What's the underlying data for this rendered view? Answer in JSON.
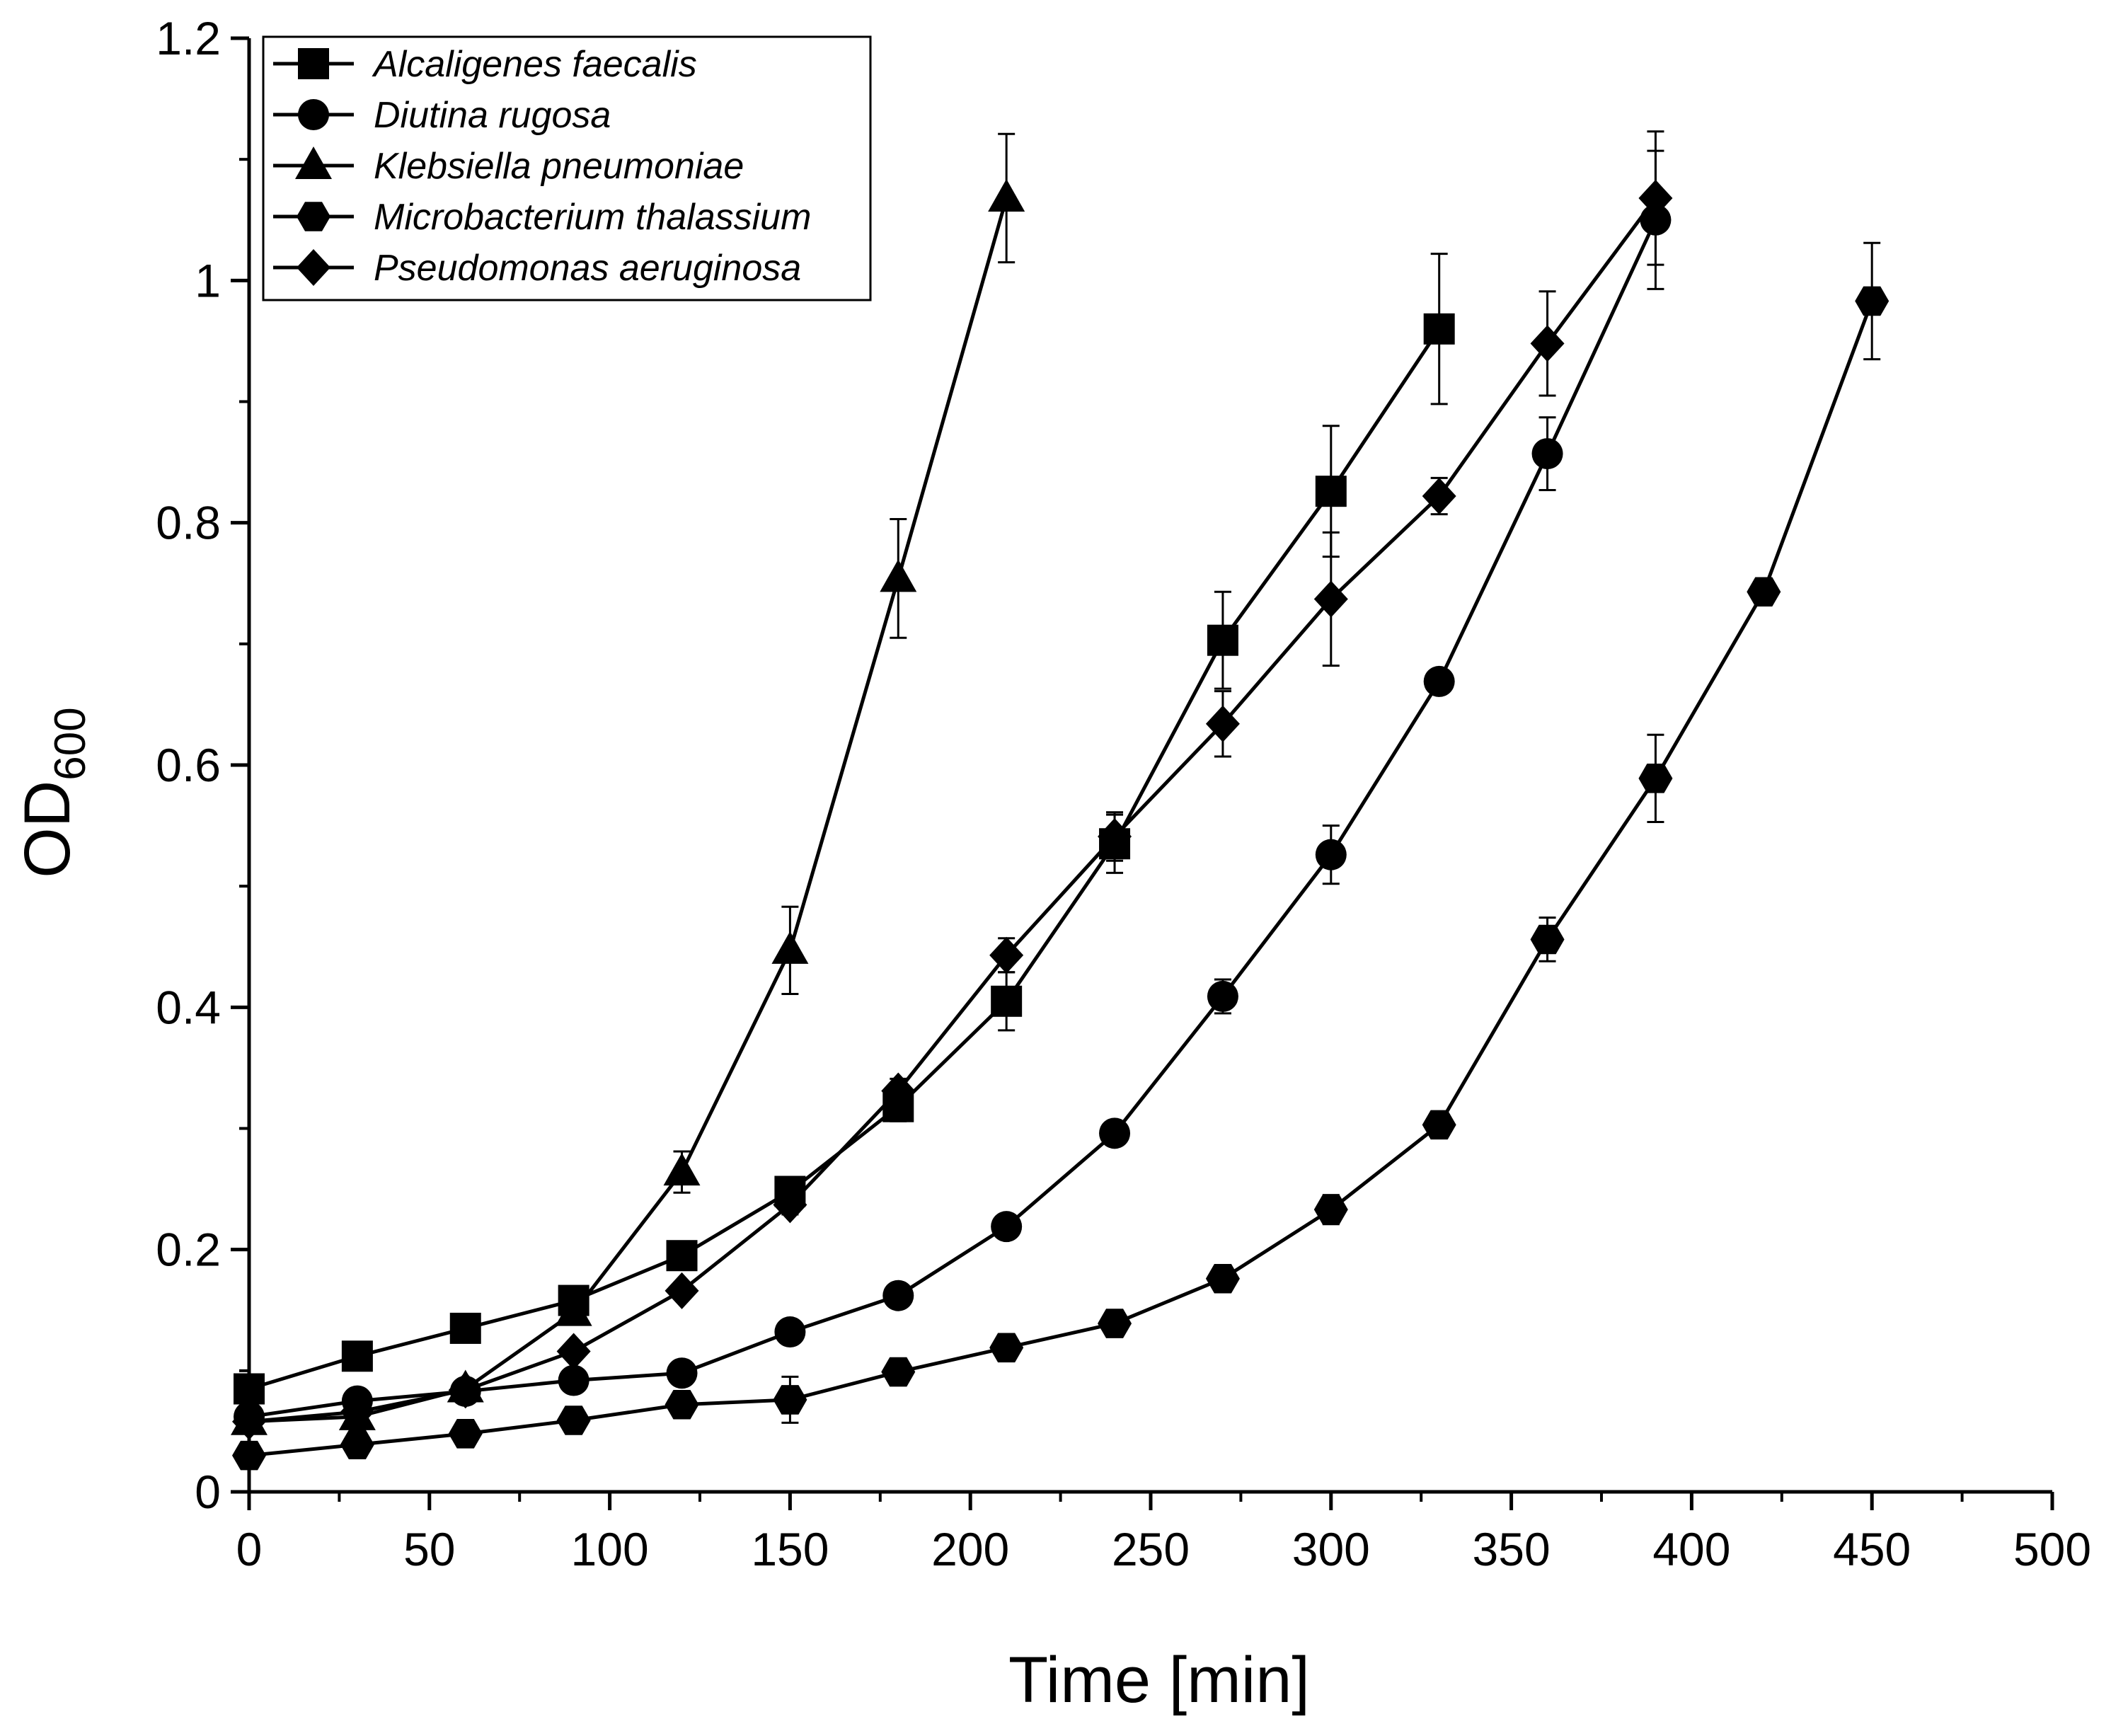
{
  "chart_data": {
    "type": "line",
    "title": "",
    "xlabel": "Time [min]",
    "ylabel_main": "OD",
    "ylabel_sub": "600",
    "xlim": [
      0,
      500
    ],
    "ylim": [
      0,
      1.2
    ],
    "xticks": [
      0,
      50,
      100,
      150,
      200,
      250,
      300,
      350,
      400,
      450,
      500
    ],
    "xtick_labels": [
      "0",
      "50",
      "100",
      "150",
      "200",
      "250",
      "300",
      "350",
      "400",
      "450",
      "500"
    ],
    "yticks": [
      0,
      0.2,
      0.4,
      0.6,
      0.8,
      1.0,
      1.2
    ],
    "ytick_labels": [
      "0",
      "0.2",
      "0.4",
      "0.6",
      "0.8",
      "1",
      "1.2"
    ],
    "grid": false,
    "legend_position": "top-left",
    "color": "#000000",
    "series": [
      {
        "name": "Alcaligenes faecalis",
        "marker": "square",
        "x": [
          0,
          30,
          60,
          90,
          120,
          150,
          180,
          210,
          240,
          270,
          300,
          330
        ],
        "y": [
          0.085,
          0.112,
          0.135,
          0.158,
          0.195,
          0.248,
          0.318,
          0.405,
          0.535,
          0.703,
          0.826,
          0.96
        ],
        "err": [
          0.005,
          0.005,
          0.005,
          0.005,
          0.006,
          0.008,
          0.012,
          0.024,
          0.024,
          0.04,
          0.054,
          0.062
        ]
      },
      {
        "name": "Diutina rugosa",
        "marker": "circle",
        "x": [
          0,
          30,
          60,
          90,
          120,
          150,
          180,
          210,
          240,
          270,
          300,
          330,
          360,
          390
        ],
        "y": [
          0.062,
          0.075,
          0.083,
          0.092,
          0.098,
          0.132,
          0.162,
          0.219,
          0.296,
          0.409,
          0.526,
          0.669,
          0.857,
          1.05
        ],
        "err": [
          0.004,
          0.004,
          0.004,
          0.004,
          0.004,
          0.005,
          0.006,
          0.008,
          0.008,
          0.014,
          0.024,
          0.008,
          0.03,
          0.057
        ]
      },
      {
        "name": "Klebsiella pneumoniae",
        "marker": "triangle",
        "x": [
          0,
          30,
          60,
          90,
          120,
          150,
          180,
          210
        ],
        "y": [
          0.058,
          0.062,
          0.085,
          0.148,
          0.264,
          0.447,
          0.754,
          1.068
        ],
        "err": [
          0.004,
          0.004,
          0.004,
          0.006,
          0.017,
          0.036,
          0.049,
          0.053
        ]
      },
      {
        "name": "Microbacterium thalassium",
        "marker": "hexagon",
        "x": [
          0,
          30,
          60,
          90,
          120,
          150,
          180,
          210,
          240,
          270,
          300,
          330,
          360,
          390,
          420,
          450
        ],
        "y": [
          0.03,
          0.039,
          0.048,
          0.059,
          0.072,
          0.076,
          0.099,
          0.119,
          0.139,
          0.176,
          0.233,
          0.303,
          0.456,
          0.589,
          0.743,
          0.983
        ],
        "err": [
          0.003,
          0.003,
          0.003,
          0.003,
          0.004,
          0.019,
          0.005,
          0.005,
          0.005,
          0.005,
          0.012,
          0.008,
          0.018,
          0.036,
          0.008,
          0.048
        ]
      },
      {
        "name": "Pseudomonas aeruginosa",
        "marker": "diamond",
        "x": [
          0,
          30,
          60,
          90,
          120,
          150,
          180,
          210,
          240,
          270,
          300,
          330,
          360,
          390
        ],
        "y": [
          0.058,
          0.066,
          0.084,
          0.116,
          0.166,
          0.237,
          0.331,
          0.443,
          0.541,
          0.634,
          0.737,
          0.822,
          0.948,
          1.068
        ],
        "err": [
          0.004,
          0.004,
          0.004,
          0.005,
          0.006,
          0.008,
          0.01,
          0.014,
          0.02,
          0.027,
          0.055,
          0.015,
          0.043,
          0.055
        ]
      }
    ]
  }
}
